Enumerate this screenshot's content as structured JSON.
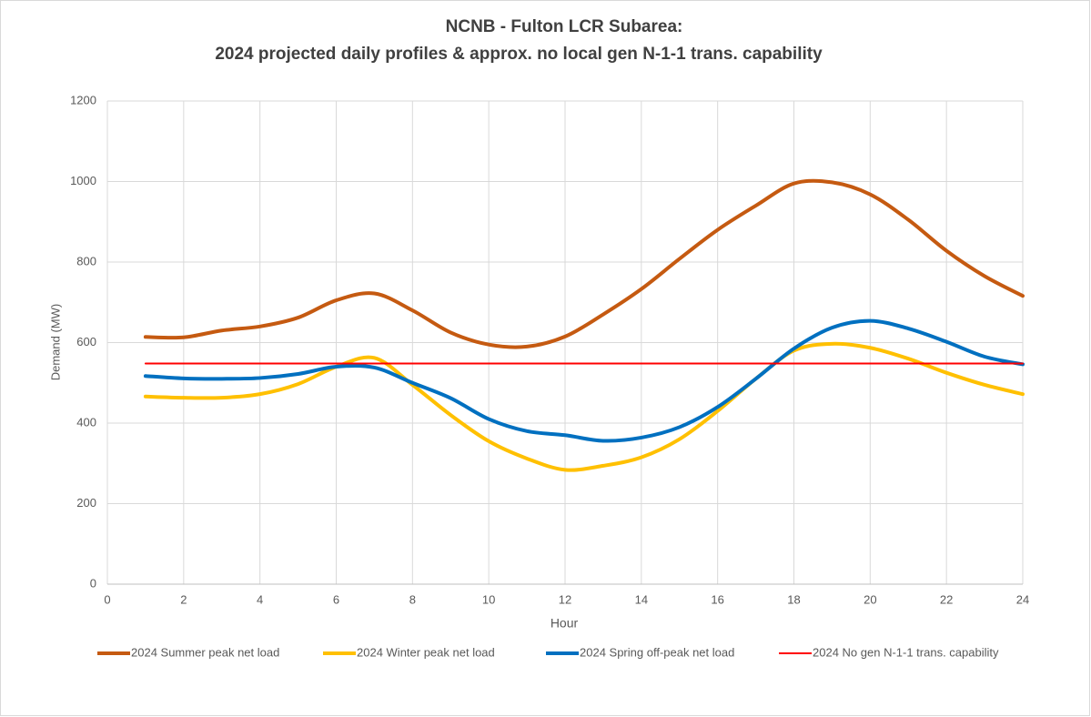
{
  "chart_data": {
    "type": "line",
    "title": [
      "NCNB - Fulton LCR Subarea:",
      "2024 projected daily profiles & approx. no local gen N-1-1 trans. capability"
    ],
    "x_label": "Hour",
    "y_label": "Demand (MW)",
    "x": [
      1,
      2,
      3,
      4,
      5,
      6,
      7,
      8,
      9,
      10,
      11,
      12,
      13,
      14,
      15,
      16,
      17,
      18,
      19,
      20,
      21,
      22,
      23,
      24
    ],
    "series": [
      {
        "name": "2024 Summer peak net load",
        "color": "#c55a11",
        "width": 4,
        "values": [
          614,
          613,
          630,
          640,
          662,
          705,
          722,
          680,
          625,
          595,
          590,
          615,
          670,
          733,
          808,
          880,
          940,
          995,
          998,
          968,
          905,
          828,
          765,
          716
        ]
      },
      {
        "name": "2024 Winter peak net load",
        "color": "#ffc000",
        "width": 4,
        "values": [
          466,
          463,
          463,
          472,
          497,
          540,
          562,
          495,
          420,
          355,
          312,
          284,
          294,
          315,
          360,
          430,
          510,
          580,
          597,
          587,
          560,
          525,
          495,
          472
        ]
      },
      {
        "name": "2024 Spring off-peak net load",
        "color": "#0070c0",
        "width": 4,
        "values": [
          517,
          511,
          510,
          512,
          522,
          540,
          538,
          500,
          462,
          410,
          380,
          370,
          356,
          364,
          390,
          440,
          510,
          585,
          637,
          654,
          635,
          602,
          565,
          546
        ]
      },
      {
        "name": "2024 No gen N-1-1 trans. capability",
        "color": "#ff0000",
        "width": 2,
        "values": [
          548,
          548,
          548,
          548,
          548,
          548,
          548,
          548,
          548,
          548,
          548,
          548,
          548,
          548,
          548,
          548,
          548,
          548,
          548,
          548,
          548,
          548,
          548,
          548
        ]
      }
    ],
    "xlim": [
      0,
      24
    ],
    "xticks": [
      0,
      2,
      4,
      6,
      8,
      10,
      12,
      14,
      16,
      18,
      20,
      22,
      24
    ],
    "ylim": [
      0,
      1200
    ],
    "yticks": [
      0,
      200,
      400,
      600,
      800,
      1000,
      1200
    ],
    "grid": true,
    "smooth": true,
    "legend": "bottom"
  }
}
